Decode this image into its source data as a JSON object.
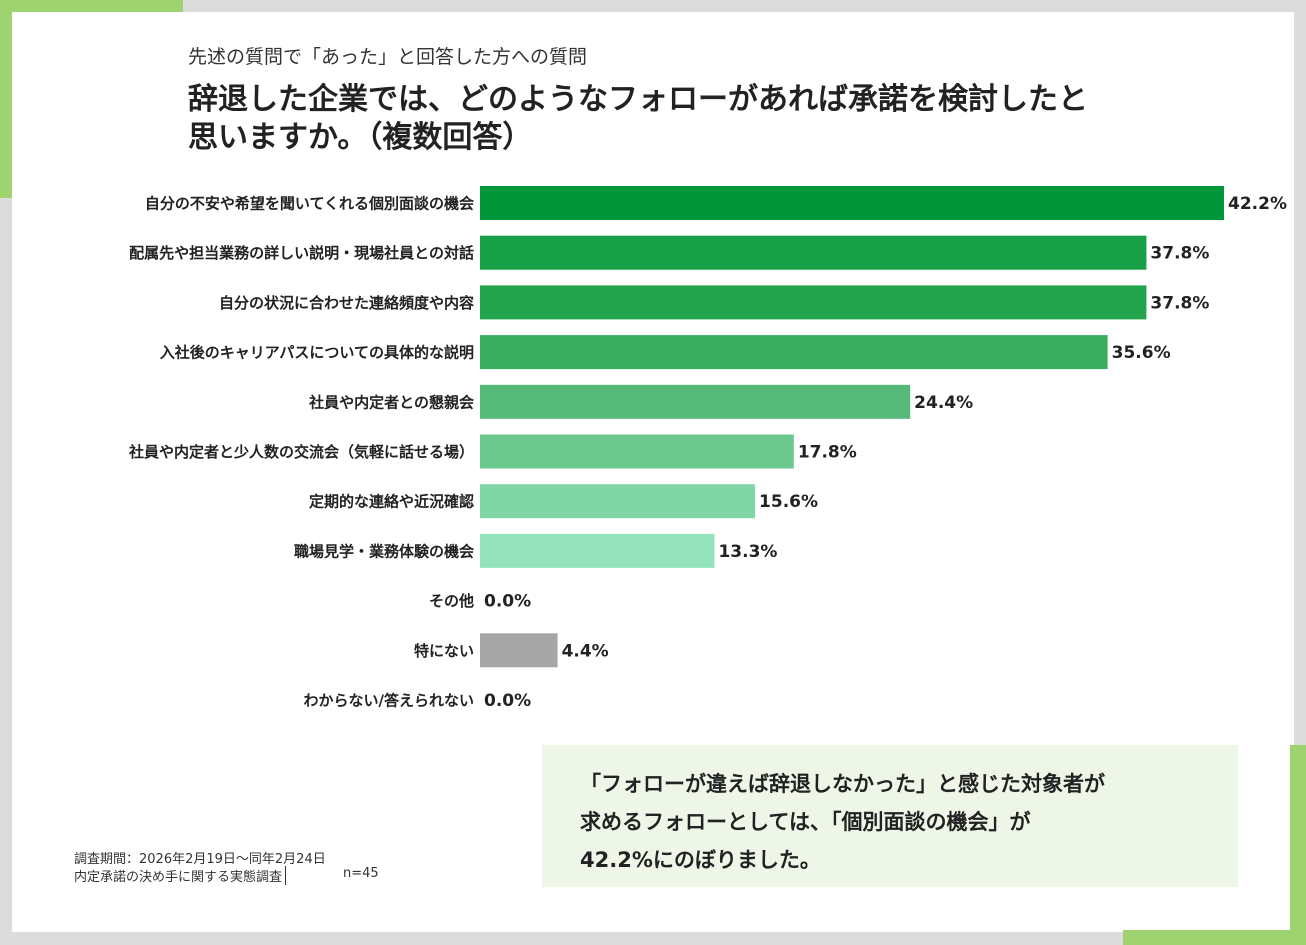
{
  "chart_data": {
    "type": "bar",
    "orientation": "horizontal",
    "subtitle": "先述の質問で「あった」と回答した方への質問",
    "title_lines": [
      "辞退した企業では、どのようなフォローがあれば承諾を検討したと",
      "思いますか。（複数回答）"
    ],
    "categories": [
      "自分の不安や希望を聞いてくれる個別面談の機会",
      "配属先や担当業務の詳しい説明・現場社員との対話",
      "自分の状況に合わせた連絡頻度や内容",
      "入社後のキャリアパスについての具体的な説明",
      "社員や内定者との懇親会",
      "社員や内定者と少人数の交流会（気軽に話せる場）",
      "定期的な連絡や近況確認",
      "職場見学・業務体験の機会",
      "その他",
      "特にない",
      "わからない/答えられない"
    ],
    "values": [
      42.2,
      37.8,
      37.8,
      35.6,
      24.4,
      17.8,
      15.6,
      13.3,
      0.0,
      4.4,
      0.0
    ],
    "value_labels": [
      "42.2%",
      "37.8%",
      "37.8%",
      "35.6%",
      "24.4%",
      "17.8%",
      "15.6%",
      "13.3%",
      "0.0%",
      "4.4%",
      "0.0%"
    ],
    "colors": [
      "#00963a",
      "#17a047",
      "#21a44c",
      "#3aad5f",
      "#55b97a",
      "#6bc98f",
      "#80d6a4",
      "#95e3bd",
      "#a8ecc8",
      "#a6a6a6",
      "#b5f0d2"
    ],
    "note_lines": [
      "「フォローが違えば辞退しなかった」と感じた対象者が",
      "求めるフォローとしては、「個別面談の機会」が",
      "42.2%にのぼりました。"
    ],
    "footer": [
      "調査期間：2026年2月19日〜同年2月24日",
      "内定承諾の決め手に関する実態調査",
      "n=45"
    ]
  }
}
